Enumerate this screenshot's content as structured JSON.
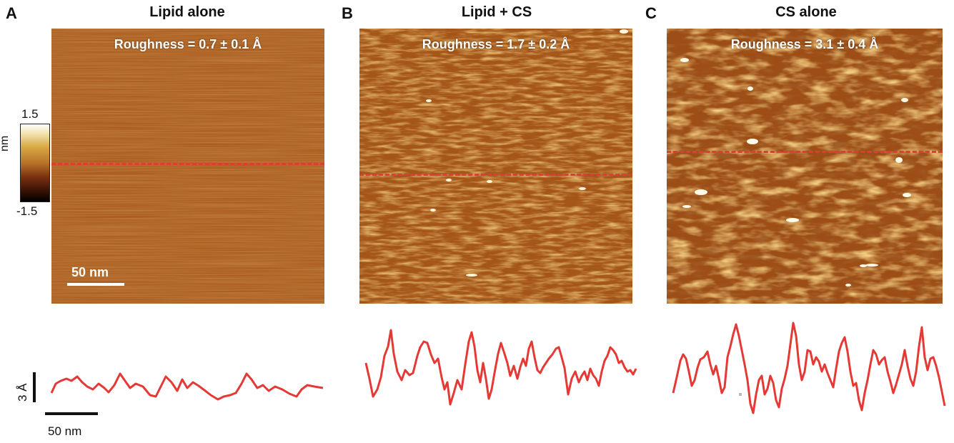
{
  "panels": [
    {
      "letter": "A",
      "title": "Lipid alone",
      "roughness": "Roughness = 0.7 ± 0.1 Å"
    },
    {
      "letter": "B",
      "title": "Lipid + CS",
      "roughness": "Roughness = 1.7 ± 0.2 Å"
    },
    {
      "letter": "C",
      "title": "CS alone",
      "roughness": "Roughness = 3.1 ± 0.4 Å"
    }
  ],
  "colorbar": {
    "max": "1.5",
    "min": "-1.5",
    "unit": "nm"
  },
  "image_scalebar": "50 nm",
  "profile_scale": {
    "vertical": "3 Å",
    "horizontal": "50 nm"
  },
  "colors": {
    "scan_line": "#e53935",
    "profile": "#e53935",
    "afm_base": "#a85a1c"
  }
}
